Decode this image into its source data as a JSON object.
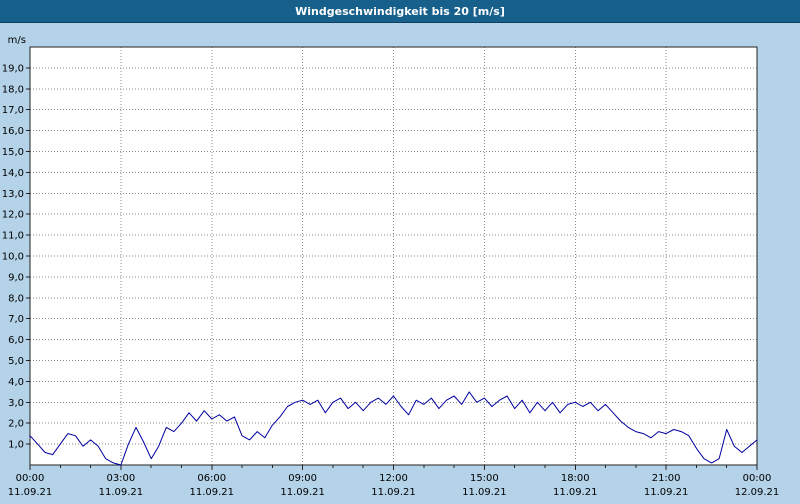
{
  "header": {
    "title": "Windgeschwindigkeit bis 20 [m/s]",
    "bg_color": "#17608c",
    "text_color": "#ffffff"
  },
  "page": {
    "bg_color": "#b4d2e8"
  },
  "chart_data": {
    "type": "line",
    "title": "Windgeschwindigkeit bis 20 [m/s]",
    "ylabel": "m/s",
    "xlabel": "",
    "ylim": [
      0,
      20
    ],
    "y_step": 1,
    "y_tick_labels": [
      "1,0",
      "2,0",
      "3,0",
      "4,0",
      "5,0",
      "6,0",
      "7,0",
      "8,0",
      "9,0",
      "10,0",
      "11,0",
      "12,0",
      "13,0",
      "14,0",
      "15,0",
      "16,0",
      "17,0",
      "18,0",
      "19,0"
    ],
    "hours": 24,
    "interval_min": 15,
    "grid": "dotted",
    "legend": "none",
    "line_color": "#0000a0",
    "grid_color": "#8c8c8c",
    "axis_color": "#222222",
    "plot_bg": "#ffffff",
    "x_ticks": [
      {
        "time": "00:00",
        "date": "11.09.21"
      },
      {
        "time": "03:00",
        "date": "11.09.21"
      },
      {
        "time": "06:00",
        "date": "11.09.21"
      },
      {
        "time": "09:00",
        "date": "11.09.21"
      },
      {
        "time": "12:00",
        "date": "11.09.21"
      },
      {
        "time": "15:00",
        "date": "11.09.21"
      },
      {
        "time": "18:00",
        "date": "11.09.21"
      },
      {
        "time": "21:00",
        "date": "11.09.21"
      },
      {
        "time": "00:00",
        "date": "12.09.21"
      }
    ],
    "values": [
      1.4,
      1.0,
      0.6,
      0.5,
      1.0,
      1.5,
      1.4,
      0.9,
      1.2,
      0.9,
      0.3,
      0.1,
      0.0,
      1.0,
      1.8,
      1.1,
      0.3,
      0.9,
      1.8,
      1.6,
      2.0,
      2.5,
      2.1,
      2.6,
      2.2,
      2.4,
      2.1,
      2.3,
      1.4,
      1.2,
      1.6,
      1.3,
      1.9,
      2.3,
      2.8,
      3.0,
      3.1,
      2.9,
      3.1,
      2.5,
      3.0,
      3.2,
      2.7,
      3.0,
      2.6,
      3.0,
      3.2,
      2.9,
      3.3,
      2.8,
      2.4,
      3.1,
      2.9,
      3.2,
      2.7,
      3.1,
      3.3,
      2.9,
      3.5,
      3.0,
      3.2,
      2.8,
      3.1,
      3.3,
      2.7,
      3.1,
      2.5,
      3.0,
      2.6,
      3.0,
      2.5,
      2.9,
      3.0,
      2.8,
      3.0,
      2.6,
      2.9,
      2.5,
      2.1,
      1.8,
      1.6,
      1.5,
      1.3,
      1.6,
      1.5,
      1.7,
      1.6,
      1.4,
      0.8,
      0.3,
      0.1,
      0.3,
      1.7,
      0.9,
      0.6,
      0.9,
      1.2
    ]
  }
}
